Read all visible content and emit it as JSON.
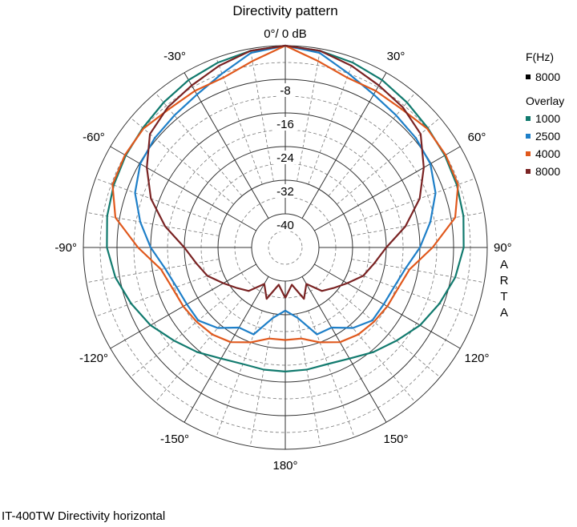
{
  "chart_data": {
    "type": "polar-line",
    "title": "Directivity pattern",
    "top_label": "0°/ 0 dB",
    "radial_ticks": [
      "-8",
      "-16",
      "-24",
      "-32",
      "-40"
    ],
    "radial_range_db": [
      -48,
      0
    ],
    "angle_labels": [
      {
        "deg": -30,
        "text": "-30°"
      },
      {
        "deg": 30,
        "text": "30°"
      },
      {
        "deg": -60,
        "text": "-60°"
      },
      {
        "deg": 60,
        "text": "60°"
      },
      {
        "deg": -90,
        "text": "-90°"
      },
      {
        "deg": 90,
        "text": "90°"
      },
      {
        "deg": -120,
        "text": "-120°"
      },
      {
        "deg": 120,
        "text": "120°"
      },
      {
        "deg": -150,
        "text": "-150°"
      },
      {
        "deg": 150,
        "text": "150°"
      },
      {
        "deg": 180,
        "text": "180°"
      }
    ],
    "watermark": [
      "A",
      "R",
      "T",
      "A"
    ],
    "legend": {
      "main_header": "F(Hz)",
      "main": [
        {
          "name": "8000",
          "color": "#000000"
        }
      ],
      "overlay_header": "Overlay",
      "overlay": [
        {
          "name": "1000",
          "color": "#117a6e"
        },
        {
          "name": "2500",
          "color": "#1e7fc8"
        },
        {
          "name": "4000",
          "color": "#e0581c"
        },
        {
          "name": "8000",
          "color": "#7a2323"
        }
      ]
    },
    "angles_deg": [
      0,
      10,
      20,
      30,
      40,
      50,
      60,
      70,
      80,
      90,
      100,
      110,
      120,
      130,
      140,
      150,
      160,
      170,
      180
    ],
    "series": [
      {
        "name": "1000",
        "color": "#117a6e",
        "values": [
          0,
          -0.5,
          -1.2,
          -2,
          -3,
          -3.8,
          -4.2,
          -4.6,
          -5,
          -5.6,
          -7,
          -9,
          -11,
          -13.5,
          -15.5,
          -17.5,
          -18.5,
          -18.5,
          -18.5
        ]
      },
      {
        "name": "2500",
        "color": "#1e7fc8",
        "values": [
          0,
          -1,
          -4,
          -6,
          -7,
          -7.5,
          -8.2,
          -10,
          -13,
          -16,
          -19,
          -20.5,
          -21,
          -21,
          -23,
          -26,
          -26,
          -31,
          -33
        ]
      },
      {
        "name": "4000",
        "color": "#e0581c",
        "values": [
          0,
          -3,
          -5,
          -5,
          -5,
          -4,
          -4,
          -4.3,
          -7,
          -13,
          -18,
          -19.5,
          -20,
          -20.5,
          -21,
          -22,
          -24,
          -26,
          -26
        ]
      },
      {
        "name": "8000",
        "color": "#7a2323",
        "values": [
          0,
          -0.5,
          -2,
          -3.5,
          -4.5,
          -6,
          -10,
          -14,
          -19,
          -24,
          -26.5,
          -28.3,
          -31,
          -33,
          -34.5,
          -38,
          -35,
          -39,
          -36
        ]
      }
    ]
  },
  "caption": "IT-400TW Directivity horizontal"
}
